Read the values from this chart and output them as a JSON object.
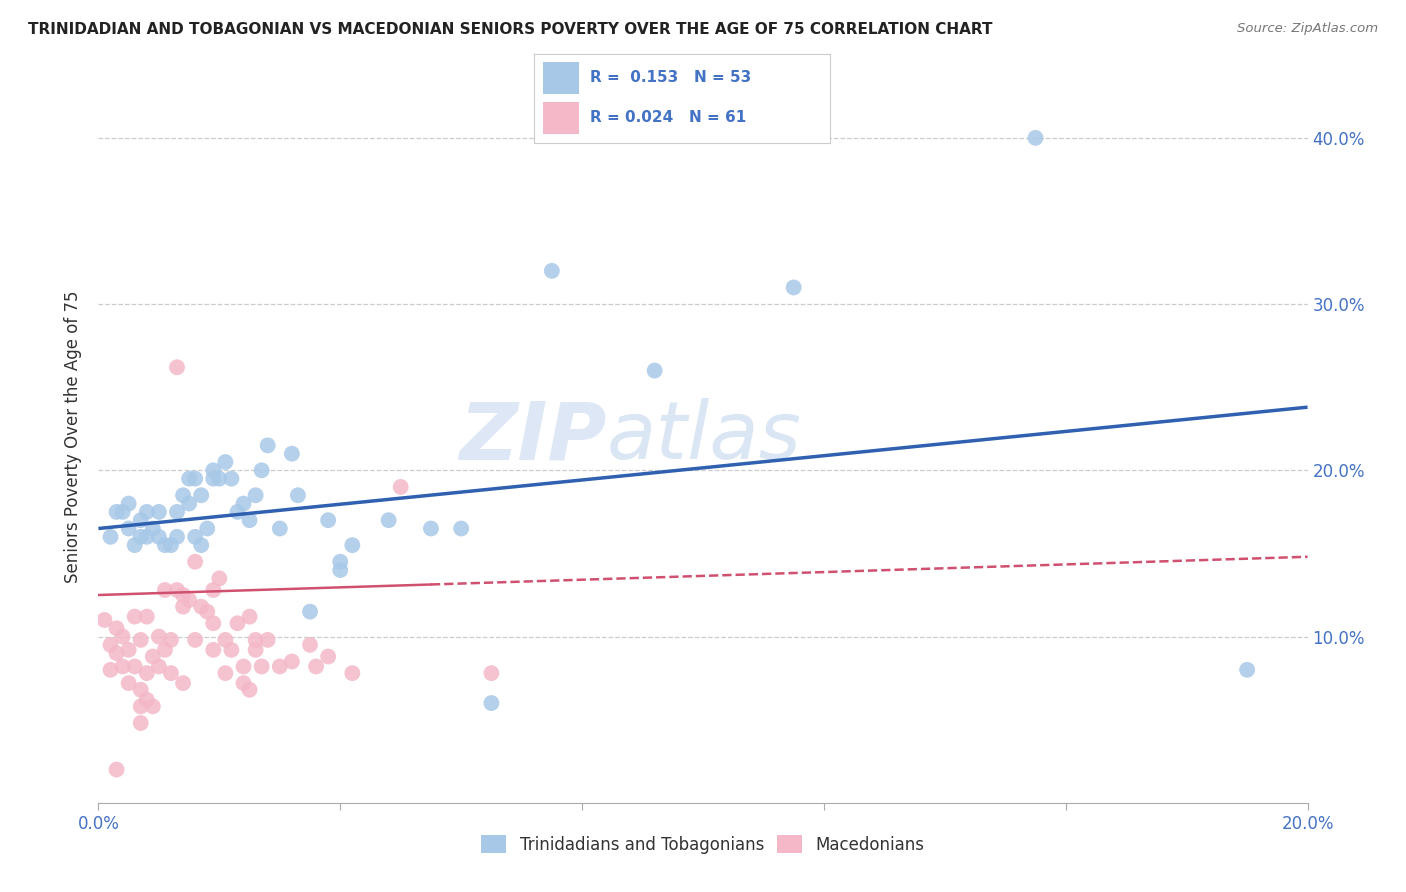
{
  "title": "TRINIDADIAN AND TOBAGONIAN VS MACEDONIAN SENIORS POVERTY OVER THE AGE OF 75 CORRELATION CHART",
  "source": "Source: ZipAtlas.com",
  "ylabel": "Seniors Poverty Over the Age of 75",
  "xlim": [
    0.0,
    0.2
  ],
  "ylim": [
    0.0,
    0.44
  ],
  "blue_R": "0.153",
  "blue_N": "53",
  "pink_R": "0.024",
  "pink_N": "61",
  "blue_color": "#a8c8e8",
  "pink_color": "#f4b8c8",
  "blue_line_color": "#3060b0",
  "pink_line_color": "#d05070",
  "watermark_zip": "ZIP",
  "watermark_atlas": "atlas",
  "grid_color": "#cccccc",
  "background_color": "#ffffff",
  "right_tick_color": "#4472c4",
  "blue_scatter": [
    [
      0.002,
      0.16
    ],
    [
      0.003,
      0.175
    ],
    [
      0.004,
      0.175
    ],
    [
      0.005,
      0.18
    ],
    [
      0.005,
      0.165
    ],
    [
      0.006,
      0.155
    ],
    [
      0.007,
      0.17
    ],
    [
      0.007,
      0.16
    ],
    [
      0.008,
      0.175
    ],
    [
      0.008,
      0.16
    ],
    [
      0.009,
      0.165
    ],
    [
      0.01,
      0.175
    ],
    [
      0.01,
      0.16
    ],
    [
      0.011,
      0.155
    ],
    [
      0.012,
      0.155
    ],
    [
      0.013,
      0.16
    ],
    [
      0.013,
      0.175
    ],
    [
      0.014,
      0.185
    ],
    [
      0.015,
      0.195
    ],
    [
      0.015,
      0.18
    ],
    [
      0.016,
      0.195
    ],
    [
      0.016,
      0.16
    ],
    [
      0.017,
      0.185
    ],
    [
      0.017,
      0.155
    ],
    [
      0.018,
      0.165
    ],
    [
      0.019,
      0.2
    ],
    [
      0.019,
      0.195
    ],
    [
      0.02,
      0.195
    ],
    [
      0.021,
      0.205
    ],
    [
      0.022,
      0.195
    ],
    [
      0.023,
      0.175
    ],
    [
      0.024,
      0.18
    ],
    [
      0.025,
      0.17
    ],
    [
      0.026,
      0.185
    ],
    [
      0.027,
      0.2
    ],
    [
      0.028,
      0.215
    ],
    [
      0.03,
      0.165
    ],
    [
      0.032,
      0.21
    ],
    [
      0.033,
      0.185
    ],
    [
      0.035,
      0.115
    ],
    [
      0.038,
      0.17
    ],
    [
      0.04,
      0.145
    ],
    [
      0.04,
      0.14
    ],
    [
      0.042,
      0.155
    ],
    [
      0.048,
      0.17
    ],
    [
      0.055,
      0.165
    ],
    [
      0.06,
      0.165
    ],
    [
      0.065,
      0.06
    ],
    [
      0.075,
      0.32
    ],
    [
      0.092,
      0.26
    ],
    [
      0.115,
      0.31
    ],
    [
      0.19,
      0.08
    ],
    [
      0.155,
      0.4
    ]
  ],
  "pink_scatter": [
    [
      0.001,
      0.11
    ],
    [
      0.002,
      0.095
    ],
    [
      0.002,
      0.08
    ],
    [
      0.003,
      0.105
    ],
    [
      0.003,
      0.09
    ],
    [
      0.003,
      0.02
    ],
    [
      0.004,
      0.1
    ],
    [
      0.004,
      0.082
    ],
    [
      0.005,
      0.092
    ],
    [
      0.005,
      0.072
    ],
    [
      0.006,
      0.112
    ],
    [
      0.006,
      0.082
    ],
    [
      0.007,
      0.098
    ],
    [
      0.007,
      0.068
    ],
    [
      0.007,
      0.058
    ],
    [
      0.007,
      0.048
    ],
    [
      0.008,
      0.112
    ],
    [
      0.008,
      0.078
    ],
    [
      0.008,
      0.062
    ],
    [
      0.009,
      0.088
    ],
    [
      0.009,
      0.058
    ],
    [
      0.01,
      0.1
    ],
    [
      0.01,
      0.082
    ],
    [
      0.011,
      0.128
    ],
    [
      0.011,
      0.092
    ],
    [
      0.012,
      0.098
    ],
    [
      0.012,
      0.078
    ],
    [
      0.013,
      0.262
    ],
    [
      0.013,
      0.128
    ],
    [
      0.014,
      0.125
    ],
    [
      0.014,
      0.118
    ],
    [
      0.014,
      0.072
    ],
    [
      0.015,
      0.122
    ],
    [
      0.016,
      0.098
    ],
    [
      0.016,
      0.145
    ],
    [
      0.017,
      0.118
    ],
    [
      0.018,
      0.115
    ],
    [
      0.019,
      0.092
    ],
    [
      0.019,
      0.128
    ],
    [
      0.019,
      0.108
    ],
    [
      0.02,
      0.135
    ],
    [
      0.021,
      0.098
    ],
    [
      0.021,
      0.078
    ],
    [
      0.022,
      0.092
    ],
    [
      0.023,
      0.108
    ],
    [
      0.024,
      0.082
    ],
    [
      0.024,
      0.072
    ],
    [
      0.025,
      0.112
    ],
    [
      0.025,
      0.068
    ],
    [
      0.026,
      0.092
    ],
    [
      0.026,
      0.098
    ],
    [
      0.027,
      0.082
    ],
    [
      0.028,
      0.098
    ],
    [
      0.03,
      0.082
    ],
    [
      0.032,
      0.085
    ],
    [
      0.035,
      0.095
    ],
    [
      0.036,
      0.082
    ],
    [
      0.038,
      0.088
    ],
    [
      0.042,
      0.078
    ],
    [
      0.05,
      0.19
    ],
    [
      0.065,
      0.078
    ]
  ]
}
